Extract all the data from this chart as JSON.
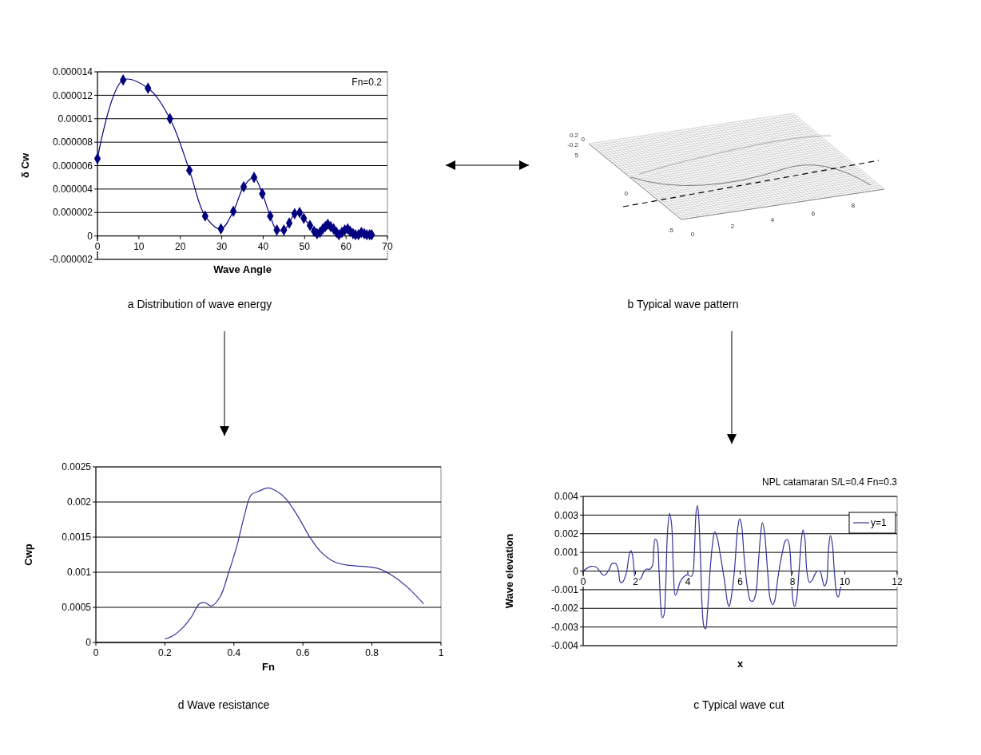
{
  "chart_data": [
    {
      "type": "line",
      "title": "a Distribution of wave energy",
      "xlabel": "Wave Angle",
      "ylabel": "δ Cw",
      "annotations": [
        "Fn=0.2"
      ],
      "xlim": [
        0,
        70
      ],
      "ylim": [
        -2e-06,
        1.4e-05
      ],
      "xticks": [
        0,
        10,
        20,
        30,
        40,
        50,
        60,
        70
      ],
      "yticks": [
        {
          "value": -2e-06,
          "label": "-0.000002"
        },
        {
          "value": 0,
          "label": "0"
        },
        {
          "value": 2e-06,
          "label": "0.000002"
        },
        {
          "value": 4e-06,
          "label": "0.000004"
        },
        {
          "value": 6e-06,
          "label": "0.000006"
        },
        {
          "value": 8e-06,
          "label": "0.000008"
        },
        {
          "value": 1e-05,
          "label": "0.00001"
        },
        {
          "value": 1.2e-05,
          "label": "0.000012"
        },
        {
          "value": 1.4e-05,
          "label": "0.000014"
        }
      ],
      "grid": "y",
      "marker": "diamond",
      "series": [
        {
          "color": "#000080",
          "x": [
            0,
            6.2,
            12.2,
            17.5,
            22.2,
            26,
            29.8,
            32.8,
            35.3,
            37.8,
            39.8,
            41.7,
            43.3,
            45,
            46.3,
            47.6,
            48.8,
            49.8,
            51.3,
            52.3,
            53,
            53.7,
            54.4,
            55,
            55.6,
            56.3,
            57,
            57.7,
            58.3,
            59,
            59.7,
            60.4,
            61,
            61.7,
            62.3,
            63,
            63.7,
            64.4,
            65,
            65.7,
            66.2
          ],
          "values": [
            6.6e-06,
            1.33e-05,
            1.26e-05,
            1e-05,
            5.6e-06,
            1.7e-06,
            6e-07,
            2.1e-06,
            4.2e-06,
            5e-06,
            3.6e-06,
            1.7e-06,
            5e-07,
            5e-07,
            1.1e-06,
            1.9e-06,
            2e-06,
            1.5e-06,
            9e-07,
            4e-07,
            2e-07,
            3e-07,
            6e-07,
            8e-07,
            1e-06,
            8e-07,
            6e-07,
            3e-07,
            1e-07,
            3e-07,
            5e-07,
            6e-07,
            4e-07,
            2e-07,
            1e-07,
            1e-07,
            3e-07,
            2e-07,
            1e-07,
            1e-07,
            1e-07
          ]
        }
      ]
    },
    {
      "type": "other",
      "title": "b Typical wave pattern",
      "annotations": [
        "0.2",
        "0",
        "-0.2",
        "5",
        "0",
        "-5",
        "0",
        "2",
        "4",
        "6",
        "8"
      ]
    },
    {
      "type": "line",
      "title": "d Wave resistance",
      "xlabel": "Fn",
      "ylabel": "Cwp",
      "xlim": [
        0,
        1
      ],
      "ylim": [
        0,
        0.0025
      ],
      "xticks": [
        0,
        0.2,
        0.4,
        0.6,
        0.8,
        1
      ],
      "yticks": [
        0,
        0.0005,
        0.001,
        0.0015,
        0.002,
        0.0025
      ],
      "grid": "y",
      "series": [
        {
          "color": "#333399",
          "x": [
            0.2,
            0.225,
            0.25,
            0.275,
            0.3,
            0.315,
            0.335,
            0.36,
            0.385,
            0.41,
            0.43,
            0.45,
            0.47,
            0.5,
            0.525,
            0.55,
            0.585,
            0.62,
            0.65,
            0.69,
            0.73,
            0.78,
            0.82,
            0.86,
            0.9,
            0.95
          ],
          "values": [
            5e-05,
            0.0001,
            0.0002,
            0.00035,
            0.00055,
            0.00057,
            0.00052,
            0.00065,
            0.001,
            0.0014,
            0.0018,
            0.0021,
            0.00215,
            0.0022,
            0.00215,
            0.00205,
            0.0018,
            0.0015,
            0.0013,
            0.00115,
            0.0011,
            0.00108,
            0.00105,
            0.00095,
            0.0008,
            0.00055
          ]
        }
      ]
    },
    {
      "type": "line",
      "title": "c Typical wave cut",
      "xlabel": "x",
      "ylabel": "Wave elevation",
      "annotations": [
        "NPL catamaran  S/L=0.4  Fn=0.3"
      ],
      "xlim": [
        0,
        12
      ],
      "ylim": [
        -0.004,
        0.004
      ],
      "xticks": [
        0,
        2,
        4,
        6,
        8,
        10,
        12
      ],
      "yticks": [
        -0.004,
        -0.003,
        -0.002,
        -0.001,
        0,
        0.001,
        0.002,
        0.003,
        0.004
      ],
      "grid": "y",
      "legend": "top right",
      "series": [
        {
          "name": "y=1",
          "color": "#333399",
          "x": [
            0,
            0.3,
            0.5,
            0.75,
            0.85,
            1.0,
            1.1,
            1.25,
            1.35,
            1.42,
            1.5,
            1.65,
            1.75,
            1.82,
            1.88,
            1.95,
            2.0,
            2.1,
            2.2,
            2.3,
            2.4,
            2.55,
            2.65,
            2.7,
            2.75,
            2.82,
            2.9,
            2.97,
            3.02,
            3.08,
            3.15,
            3.22,
            3.3,
            3.38,
            3.45,
            3.52,
            3.6,
            3.7,
            3.85,
            4.0,
            4.1,
            4.18,
            4.25,
            4.32,
            4.37,
            4.42,
            4.5,
            4.55,
            4.62,
            4.68,
            4.75,
            4.85,
            4.95,
            5.03,
            5.12,
            5.25,
            5.4,
            5.52,
            5.58,
            5.65,
            5.78,
            5.9,
            5.98,
            6.05,
            6.15,
            6.28,
            6.4,
            6.5,
            6.6,
            6.7,
            6.8,
            6.85,
            6.92,
            7.05,
            7.15,
            7.25,
            7.32,
            7.45,
            7.6,
            7.72,
            7.8,
            7.88,
            7.95,
            8.02,
            8.08,
            8.15,
            8.25,
            8.35,
            8.4,
            8.47,
            8.55,
            8.65,
            8.75,
            8.85,
            8.95,
            9.05,
            9.15,
            9.22,
            9.3,
            9.38,
            9.45,
            9.52,
            9.6,
            9.7,
            9.75,
            9.82,
            9.9
          ],
          "values": [
            0,
            0.00025,
            0.0002,
            -0.0002,
            -0.0002,
            0.0001,
            0.0004,
            0.0004,
            0,
            -0.0006,
            -0.0006,
            -0.0001,
            0.0008,
            0.0011,
            0.0009,
            0,
            -0.0005,
            -0.0005,
            -0.0004,
            -0.0001,
            0.0001,
            0.0001,
            0.0003,
            0.0012,
            0.0017,
            0.0016,
            0,
            -0.002,
            -0.0025,
            -0.0024,
            -0.001,
            0.002,
            0.0031,
            0.0025,
            0,
            -0.0013,
            -0.0011,
            -0.0006,
            -0.0003,
            -0.0002,
            -0.0003,
            -0.0002,
            0.001,
            0.0032,
            0.0035,
            0.0028,
            0,
            -0.002,
            -0.003,
            -0.0031,
            -0.0022,
            0,
            0.0015,
            0.0021,
            0.0018,
            0.0008,
            -0.0005,
            -0.0017,
            -0.0019,
            -0.0015,
            0,
            0.0022,
            0.0028,
            0.0025,
            0.0008,
            -0.0009,
            -0.0016,
            -0.0016,
            -0.0012,
            0.0005,
            0.0022,
            0.0026,
            0.0022,
            0,
            -0.0015,
            -0.0018,
            -0.0016,
            -0.0003,
            0.0009,
            0.0016,
            0.0017,
            0.0014,
            0,
            -0.0016,
            -0.0019,
            -0.0016,
            0,
            0.0018,
            0.0022,
            0.0018,
            0,
            -0.0006,
            -0.0005,
            -0.0002,
            0,
            0,
            -0.0005,
            -0.0008,
            -0.0006,
            0.0012,
            0.0019,
            0.0015,
            0,
            -0.0013,
            -0.0014,
            -0.001,
            -0.0006
          ]
        }
      ]
    }
  ]
}
